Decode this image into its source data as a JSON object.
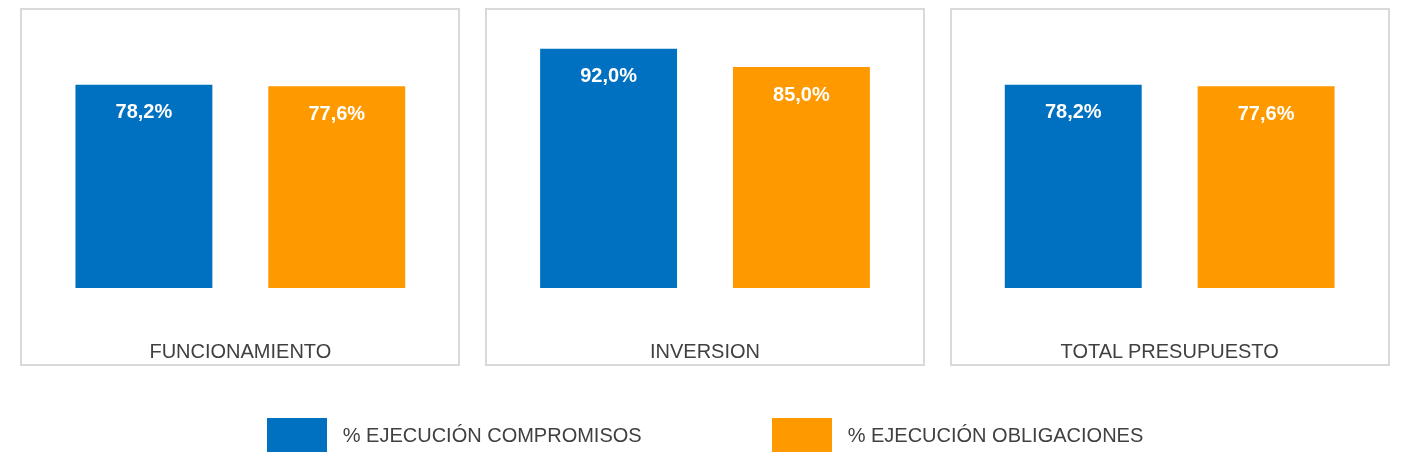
{
  "chart_data": {
    "type": "bar",
    "categories": [
      "FUNCIONAMIENTO",
      "INVERSION",
      "TOTAL PRESUPUESTO"
    ],
    "legend": "bottom",
    "series": [
      {
        "name": "% EJECUCIÓN COMPROMISOS",
        "color": "#0070c0",
        "values": [
          78.2,
          92.0,
          78.2
        ],
        "value_labels": [
          "78,2%",
          "92,0%",
          "78,2%"
        ]
      },
      {
        "name": "%  EJECUCIÓN OBLIGACIONES",
        "color": "#ff9900",
        "values": [
          77.6,
          85.0,
          77.6
        ],
        "value_labels": [
          "77,6%",
          "85,0%",
          "77,6%"
        ]
      }
    ]
  }
}
